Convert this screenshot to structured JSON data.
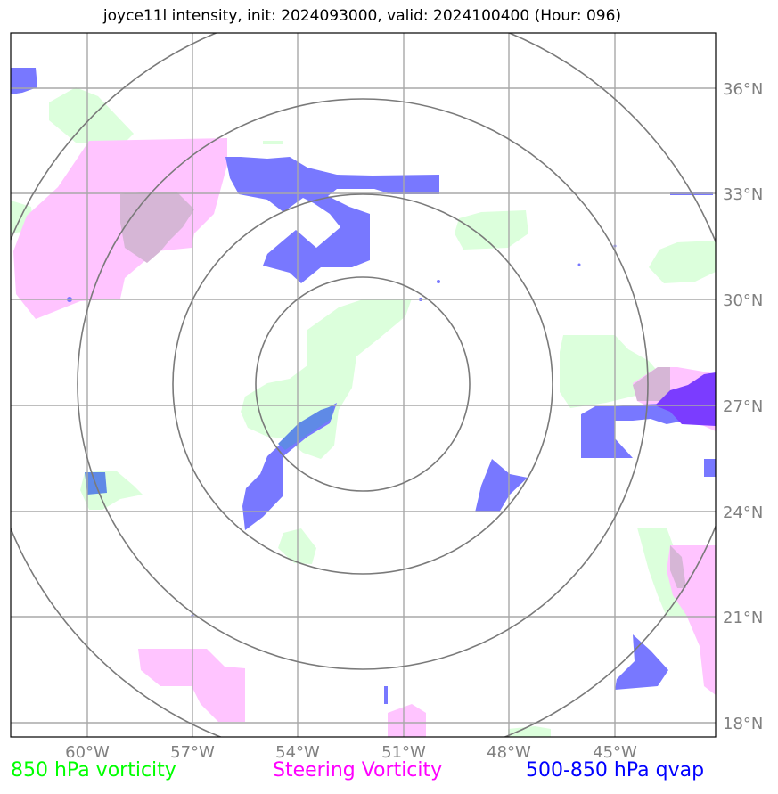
{
  "title": "joyce11l intensity, init: 2024093000, valid: 2024100400 (Hour: 096)",
  "lon_ticks": [
    "60°W",
    "57°W",
    "54°W",
    "51°W",
    "48°W",
    "45°W"
  ],
  "lat_ticks": [
    "36°N",
    "33°N",
    "30°N",
    "27°N",
    "24°N",
    "21°N",
    "18°N"
  ],
  "legend": [
    {
      "label": "850 hPa vorticity",
      "color": "#00ff00"
    },
    {
      "label": "Steering Vorticity",
      "color": "#ff00ff"
    },
    {
      "label": "500-850 hPa qvap",
      "color": "#0000ff"
    }
  ],
  "colors": {
    "vort850": "#dcffdc",
    "steering": "#ffc4ff",
    "qvap": "#7878ff",
    "grid": "#a8a8a8",
    "rings": "#7a7a7a"
  }
}
